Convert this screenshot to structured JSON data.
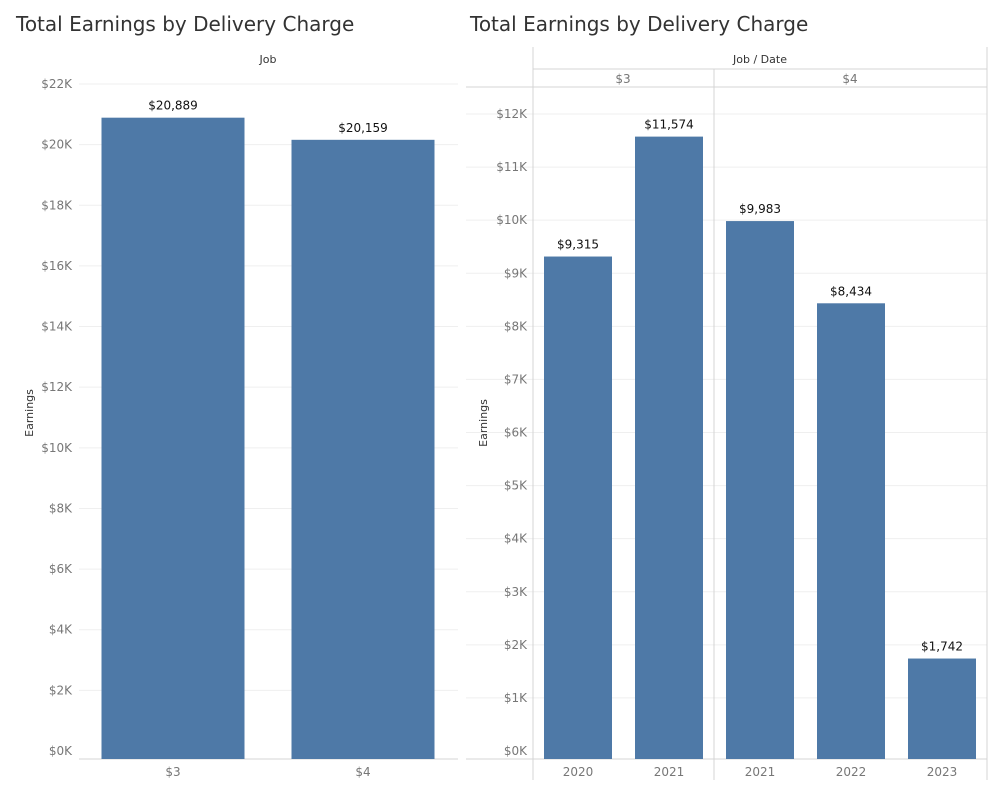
{
  "colors": {
    "bar": "#4e79a7"
  },
  "chart_data": [
    {
      "type": "bar",
      "title": "Total Earnings by Delivery Charge",
      "column_header": "Job",
      "ylabel": "Earnings",
      "ylim": [
        0,
        22000
      ],
      "y_ticks": [
        {
          "value": 0,
          "label": "$0K"
        },
        {
          "value": 2000,
          "label": "$2K"
        },
        {
          "value": 4000,
          "label": "$4K"
        },
        {
          "value": 6000,
          "label": "$6K"
        },
        {
          "value": 8000,
          "label": "$8K"
        },
        {
          "value": 10000,
          "label": "$10K"
        },
        {
          "value": 12000,
          "label": "$12K"
        },
        {
          "value": 14000,
          "label": "$14K"
        },
        {
          "value": 16000,
          "label": "$16K"
        },
        {
          "value": 18000,
          "label": "$18K"
        },
        {
          "value": 20000,
          "label": "$20K"
        },
        {
          "value": 22000,
          "label": "$22K"
        }
      ],
      "categories": [
        "$3",
        "$4"
      ],
      "values": [
        20889,
        20159
      ],
      "data_labels": [
        "$20,889",
        "$20,159"
      ],
      "grid": true
    },
    {
      "type": "bar",
      "title": "Total Earnings by Delivery Charge",
      "column_header": "Job / Date",
      "groups": [
        "$3",
        "$4"
      ],
      "ylabel": "Earnings",
      "ylim": [
        0,
        12000
      ],
      "y_ticks": [
        {
          "value": 0,
          "label": "$0K"
        },
        {
          "value": 1000,
          "label": "$1K"
        },
        {
          "value": 2000,
          "label": "$2K"
        },
        {
          "value": 3000,
          "label": "$3K"
        },
        {
          "value": 4000,
          "label": "$4K"
        },
        {
          "value": 5000,
          "label": "$5K"
        },
        {
          "value": 6000,
          "label": "$6K"
        },
        {
          "value": 7000,
          "label": "$7K"
        },
        {
          "value": 8000,
          "label": "$8K"
        },
        {
          "value": 9000,
          "label": "$9K"
        },
        {
          "value": 10000,
          "label": "$10K"
        },
        {
          "value": 11000,
          "label": "$11K"
        },
        {
          "value": 12000,
          "label": "$12K"
        }
      ],
      "bars": [
        {
          "group": "$3",
          "category": "2020",
          "value": 9315,
          "label": "$9,315"
        },
        {
          "group": "$3",
          "category": "2021",
          "value": 11574,
          "label": "$11,574"
        },
        {
          "group": "$4",
          "category": "2021",
          "value": 9983,
          "label": "$9,983"
        },
        {
          "group": "$4",
          "category": "2022",
          "value": 8434,
          "label": "$8,434"
        },
        {
          "group": "$4",
          "category": "2023",
          "value": 1742,
          "label": "$1,742"
        }
      ],
      "grid": true
    }
  ]
}
